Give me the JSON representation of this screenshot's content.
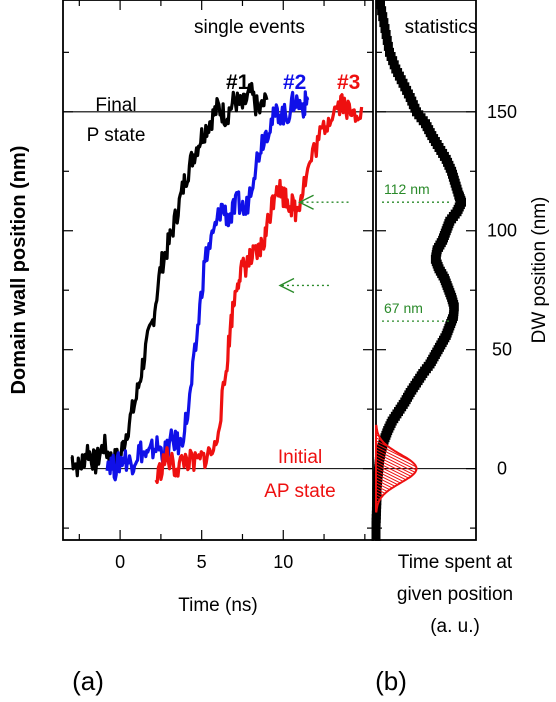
{
  "panel_a_label": "(a)",
  "panel_b_label": "(b)",
  "chart_data": [
    {
      "panel": "a",
      "type": "line",
      "title": "single events",
      "xlabel": "Time (ns)",
      "ylabel": "Domain wall position (nm)",
      "xlim": [
        -3.5,
        15.5
      ],
      "ylim": [
        -30,
        197
      ],
      "xticks": [
        0,
        5,
        10
      ],
      "yticks": [
        0,
        50,
        100,
        150
      ],
      "grid": false,
      "annotations": {
        "final_line1": "Final",
        "final_line2": "P state",
        "initial_line1": "Initial",
        "initial_line2": "AP state"
      },
      "reference_lines_y": [
        0,
        150
      ],
      "series": [
        {
          "name": "#1",
          "color": "#000000",
          "x": [
            -3.0,
            -2.5,
            -2.0,
            -1.5,
            -1.0,
            -0.5,
            0.0,
            0.5,
            1.0,
            1.5,
            2.0,
            2.5,
            3.0,
            3.5,
            4.0,
            4.5,
            5.0,
            5.5,
            6.0,
            6.5,
            7.0,
            7.5,
            8.0,
            8.5,
            9.0
          ],
          "y": [
            5,
            0,
            8,
            2,
            10,
            3,
            5,
            18,
            30,
            48,
            62,
            85,
            95,
            108,
            122,
            132,
            140,
            146,
            152,
            148,
            155,
            152,
            158,
            150,
            155
          ]
        },
        {
          "name": "#2",
          "color": "#1010e8",
          "x": [
            -0.8,
            -0.3,
            0.2,
            0.7,
            1.2,
            1.7,
            2.2,
            2.7,
            3.2,
            3.7,
            4.2,
            4.7,
            5.2,
            5.7,
            6.2,
            6.7,
            7.2,
            7.7,
            8.2,
            8.7,
            9.2,
            9.7,
            10.2,
            10.7,
            11.2,
            11.5
          ],
          "y": [
            4,
            0,
            5,
            2,
            8,
            5,
            10,
            6,
            12,
            10,
            25,
            55,
            88,
            98,
            110,
            105,
            112,
            108,
            125,
            138,
            145,
            150,
            148,
            155,
            152,
            155
          ]
        },
        {
          "name": "#3",
          "color": "#ee1010",
          "x": [
            2.2,
            2.8,
            3.4,
            4.0,
            4.6,
            5.2,
            5.8,
            6.4,
            6.8,
            7.2,
            7.6,
            8.0,
            8.4,
            8.8,
            9.2,
            9.6,
            10.0,
            10.4,
            10.8,
            11.2,
            11.8,
            12.4,
            13.0,
            13.6,
            14.2,
            14.8
          ],
          "y": [
            -5,
            5,
            0,
            4,
            2,
            5,
            8,
            35,
            62,
            80,
            85,
            88,
            90,
            95,
            108,
            120,
            115,
            112,
            108,
            118,
            132,
            142,
            150,
            155,
            148,
            152
          ]
        }
      ],
      "arrows": [
        {
          "y": 112,
          "x_from": 14.0,
          "x_to": 11.0,
          "color": "#2a8a2a"
        },
        {
          "y": 77,
          "x_from": 12.8,
          "x_to": 9.8,
          "color": "#2a8a2a"
        }
      ]
    },
    {
      "panel": "b",
      "type": "line",
      "title": "statistics",
      "xlabel_lines": [
        "Time spent at",
        "given position",
        "(a. u.)"
      ],
      "ylabel": "DW position (nm)",
      "ylim": [
        -30,
        197
      ],
      "yticks": [
        0,
        50,
        100,
        150
      ],
      "grid": false,
      "annotations": [
        {
          "text": "112 nm",
          "y": 112,
          "color": "#2a8a2a"
        },
        {
          "text": "67 nm",
          "y": 62,
          "color": "#2a8a2a"
        }
      ],
      "reference_lines_y": [
        0,
        150
      ],
      "histogram": {
        "color": "#000000",
        "y": [
          195,
          185,
          175,
          168,
          162,
          156,
          150,
          145,
          140,
          135,
          130,
          125,
          120,
          115,
          112,
          108,
          104,
          100,
          96,
          92,
          88,
          84,
          80,
          76,
          72,
          68,
          64,
          60,
          56,
          52,
          48,
          44,
          40,
          36,
          32,
          28,
          24,
          20,
          16,
          12,
          8,
          4,
          0,
          -4,
          -8,
          -12,
          -18,
          -24,
          -30
        ],
        "value": [
          0.05,
          0.1,
          0.15,
          0.22,
          0.3,
          0.38,
          0.45,
          0.55,
          0.62,
          0.7,
          0.78,
          0.84,
          0.88,
          0.92,
          0.95,
          0.9,
          0.82,
          0.78,
          0.74,
          0.68,
          0.66,
          0.7,
          0.76,
          0.8,
          0.84,
          0.87,
          0.86,
          0.82,
          0.78,
          0.72,
          0.66,
          0.6,
          0.52,
          0.45,
          0.38,
          0.32,
          0.25,
          0.18,
          0.13,
          0.09,
          0.06,
          0.04,
          0.03,
          0.02,
          0.01,
          0.01,
          0.005,
          0.0,
          0.0
        ]
      },
      "gaussian": {
        "color": "#ee1010",
        "center": 0,
        "sigma": 6,
        "amplitude": 0.45
      }
    }
  ]
}
